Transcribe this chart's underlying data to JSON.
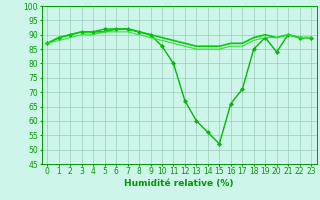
{
  "series": [
    {
      "values": [
        87,
        89,
        90,
        91,
        91,
        92,
        92,
        92,
        91,
        90,
        86,
        80,
        67,
        60,
        56,
        52,
        66,
        71,
        85,
        89,
        84,
        90,
        89,
        89
      ],
      "color": "#00bb00",
      "marker": "D",
      "markersize": 2.0,
      "linewidth": 1.0
    },
    {
      "values": [
        87,
        89,
        90,
        91,
        91,
        91,
        92,
        92,
        91,
        90,
        89,
        88,
        87,
        86,
        86,
        86,
        87,
        87,
        89,
        90,
        89,
        90,
        89,
        89
      ],
      "color": "#00cc00",
      "marker": null,
      "markersize": 0,
      "linewidth": 1.2
    },
    {
      "values": [
        87,
        88,
        89,
        90,
        90,
        91,
        91,
        91,
        90,
        89,
        88,
        87,
        86,
        85,
        85,
        85,
        86,
        86,
        88,
        89,
        89,
        90,
        89,
        89
      ],
      "color": "#33dd33",
      "marker": null,
      "markersize": 0,
      "linewidth": 0.8
    }
  ],
  "x_values": [
    0,
    1,
    2,
    3,
    4,
    5,
    6,
    7,
    8,
    9,
    10,
    11,
    12,
    13,
    14,
    15,
    16,
    17,
    18,
    19,
    20,
    21,
    22,
    23
  ],
  "xlabel": "Humidité relative (%)",
  "xlim": [
    -0.5,
    23.5
  ],
  "ylim": [
    45,
    100
  ],
  "yticks": [
    45,
    50,
    55,
    60,
    65,
    70,
    75,
    80,
    85,
    90,
    95,
    100
  ],
  "xtick_labels": [
    "0",
    "1",
    "2",
    "3",
    "4",
    "5",
    "6",
    "7",
    "8",
    "9",
    "10",
    "11",
    "12",
    "13",
    "14",
    "15",
    "16",
    "17",
    "18",
    "19",
    "20",
    "21",
    "22",
    "23"
  ],
  "bg_color": "#cef5ea",
  "grid_color": "#99ccbb",
  "axis_color": "#009900",
  "tick_color": "#009900",
  "label_color": "#009900",
  "label_fontsize": 6.5,
  "tick_fontsize": 5.5
}
